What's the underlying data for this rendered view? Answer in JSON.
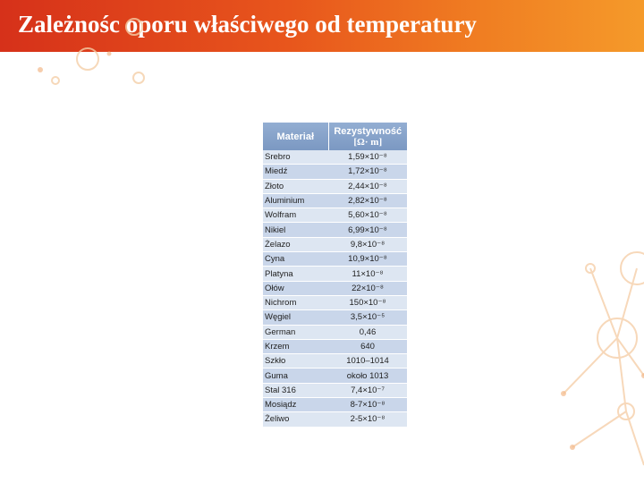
{
  "slide": {
    "title": "Zależnośc oporu właściwego od temperatury"
  },
  "table": {
    "headers": {
      "material": "Materiał",
      "resistivity": "Rezystywność",
      "unit": "[Ω· m]"
    },
    "rows": [
      {
        "material": "Srebro",
        "value": "1,59×10⁻⁸"
      },
      {
        "material": "Miedź",
        "value": "1,72×10⁻⁸"
      },
      {
        "material": "Złoto",
        "value": "2,44×10⁻⁸"
      },
      {
        "material": "Aluminium",
        "value": "2,82×10⁻⁸"
      },
      {
        "material": "Wolfram",
        "value": "5,60×10⁻⁸"
      },
      {
        "material": "Nikiel",
        "value": "6,99×10⁻⁸"
      },
      {
        "material": "Żelazo",
        "value": "9,8×10⁻⁸"
      },
      {
        "material": "Cyna",
        "value": "10,9×10⁻⁸"
      },
      {
        "material": "Platyna",
        "value": "11×10⁻⁸"
      },
      {
        "material": "Ołów",
        "value": "22×10⁻⁸"
      },
      {
        "material": "Nichrom",
        "value": "150×10⁻⁸"
      },
      {
        "material": "Węgiel",
        "value": "3,5×10⁻⁵"
      },
      {
        "material": "German",
        "value": "0,46"
      },
      {
        "material": "Krzem",
        "value": "640"
      },
      {
        "material": "Szkło",
        "value": "1010–1014"
      },
      {
        "material": "Guma",
        "value": "około 1013"
      },
      {
        "material": "Stal 316",
        "value": "7,4×10⁻⁷"
      },
      {
        "material": "Mosiądz",
        "value": "8-7×10⁻⁸"
      },
      {
        "material": "Żeliwo",
        "value": "2-5×10⁻⁸"
      }
    ]
  },
  "colors": {
    "title_bar_start": "#d6311a",
    "title_bar_end": "#f59a2a",
    "header_bg": "#7b98c2",
    "row_light": "#dde6f2",
    "row_dark": "#c9d6ea"
  }
}
